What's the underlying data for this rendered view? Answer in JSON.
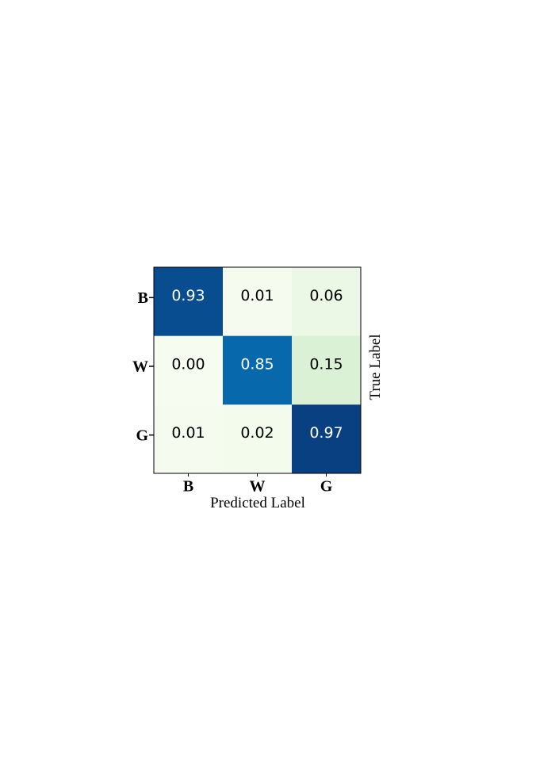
{
  "chart_data": {
    "type": "heatmap",
    "x_categories": [
      "B",
      "W",
      "G"
    ],
    "y_categories": [
      "B",
      "W",
      "G"
    ],
    "xlabel": "Predicted Label",
    "ylabel": "True Label",
    "values": [
      [
        0.93,
        0.01,
        0.06
      ],
      [
        0.0,
        0.85,
        0.15
      ],
      [
        0.01,
        0.02,
        0.97
      ]
    ],
    "value_labels": [
      [
        "0.93",
        "0.01",
        "0.06"
      ],
      [
        "0.00",
        "0.85",
        "0.15"
      ],
      [
        "0.01",
        "0.02",
        "0.97"
      ]
    ],
    "colormap": [
      "#f7fcf0",
      "#e0f3db",
      "#ccebc5",
      "#a8ddb5",
      "#7bccc4",
      "#4eb3d3",
      "#2b8cbe",
      "#0868ac",
      "#084081"
    ]
  }
}
